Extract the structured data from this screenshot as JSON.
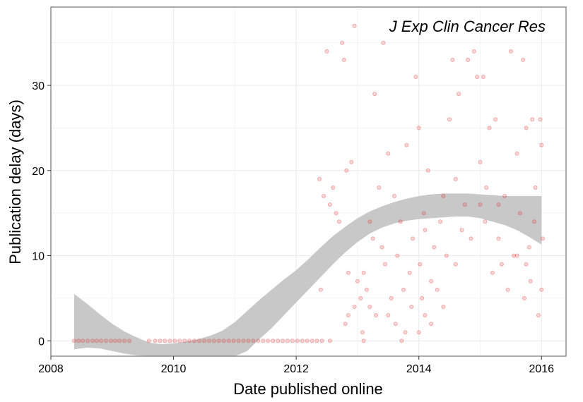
{
  "chart_data": {
    "type": "scatter",
    "annotation": "J Exp Clin Cancer Res",
    "xlabel": "Date published online",
    "ylabel": "Publication delay (days)",
    "xlim": [
      2008.0,
      2016.4
    ],
    "ylim": [
      -1.8,
      39.2
    ],
    "x_ticks": [
      2008,
      2010,
      2012,
      2014,
      2016
    ],
    "y_ticks": [
      0,
      10,
      20,
      30
    ],
    "x_tick_labels": [
      "2008",
      "2010",
      "2012",
      "2014",
      "2016"
    ],
    "y_tick_labels": [
      "0",
      "10",
      "20",
      "30"
    ],
    "grid": true,
    "legend": "none",
    "colors": {
      "points": "#e41a1c",
      "ribbon": "#c8c8c8",
      "panel_border": "#7f7f7f",
      "grid": "#ebebeb"
    },
    "zero_points_x": [
      2008.38,
      2008.45,
      2008.52,
      2008.6,
      2008.68,
      2008.75,
      2008.82,
      2008.9,
      2008.98,
      2009.05,
      2009.12,
      2009.2,
      2009.28,
      2009.6,
      2009.7,
      2009.78,
      2009.86,
      2009.94,
      2010.02,
      2010.1,
      2010.18,
      2010.26,
      2010.34,
      2010.42,
      2010.5,
      2010.58,
      2010.66,
      2010.74,
      2010.82,
      2010.9,
      2010.98,
      2011.06,
      2011.14,
      2011.22,
      2011.3,
      2011.38,
      2011.46,
      2011.54,
      2011.62,
      2011.7,
      2011.78,
      2011.86,
      2011.94,
      2012.02,
      2012.1,
      2012.18,
      2012.26,
      2012.34,
      2012.42,
      2012.55
    ],
    "points": [
      [
        2012.38,
        19
      ],
      [
        2012.45,
        17
      ],
      [
        2012.5,
        34
      ],
      [
        2012.55,
        16
      ],
      [
        2012.6,
        18
      ],
      [
        2012.65,
        15
      ],
      [
        2012.7,
        14
      ],
      [
        2012.75,
        35
      ],
      [
        2012.78,
        33
      ],
      [
        2012.82,
        20
      ],
      [
        2012.85,
        8
      ],
      [
        2012.9,
        21
      ],
      [
        2012.95,
        37
      ],
      [
        2012.4,
        6
      ],
      [
        2012.8,
        2
      ],
      [
        2012.85,
        3
      ],
      [
        2012.95,
        4
      ],
      [
        2013.0,
        7
      ],
      [
        2013.05,
        5
      ],
      [
        2013.08,
        1
      ],
      [
        2013.1,
        8
      ],
      [
        2013.15,
        6
      ],
      [
        2013.2,
        4
      ],
      [
        2013.25,
        12
      ],
      [
        2013.28,
        29
      ],
      [
        2013.3,
        3
      ],
      [
        2013.35,
        18
      ],
      [
        2013.4,
        11
      ],
      [
        2013.42,
        35
      ],
      [
        2013.45,
        9
      ],
      [
        2013.5,
        22
      ],
      [
        2013.55,
        5
      ],
      [
        2013.6,
        17
      ],
      [
        2013.62,
        2
      ],
      [
        2013.65,
        10
      ],
      [
        2013.7,
        14
      ],
      [
        2013.72,
        0
      ],
      [
        2013.75,
        6
      ],
      [
        2013.78,
        1
      ],
      [
        2013.8,
        23
      ],
      [
        2013.85,
        8
      ],
      [
        2013.88,
        4
      ],
      [
        2013.9,
        12
      ],
      [
        2013.95,
        31
      ],
      [
        2014.0,
        25
      ],
      [
        2014.02,
        9
      ],
      [
        2014.05,
        5
      ],
      [
        2014.08,
        15
      ],
      [
        2014.1,
        3
      ],
      [
        2014.15,
        20
      ],
      [
        2014.2,
        7
      ],
      [
        2014.25,
        11
      ],
      [
        2014.3,
        6
      ],
      [
        2014.35,
        14
      ],
      [
        2014.4,
        17
      ],
      [
        2014.45,
        10
      ],
      [
        2014.5,
        26
      ],
      [
        2014.55,
        33
      ],
      [
        2014.6,
        9
      ],
      [
        2014.65,
        29
      ],
      [
        2014.7,
        13
      ],
      [
        2014.75,
        16
      ],
      [
        2014.8,
        33
      ],
      [
        2014.85,
        12
      ],
      [
        2014.9,
        34
      ],
      [
        2014.95,
        31
      ],
      [
        2015.0,
        16
      ],
      [
        2015.05,
        31
      ],
      [
        2015.08,
        14
      ],
      [
        2015.1,
        18
      ],
      [
        2015.15,
        25
      ],
      [
        2015.2,
        8
      ],
      [
        2015.25,
        26
      ],
      [
        2015.3,
        12
      ],
      [
        2015.35,
        9
      ],
      [
        2015.4,
        17
      ],
      [
        2015.45,
        6
      ],
      [
        2015.5,
        34
      ],
      [
        2015.55,
        10
      ],
      [
        2015.6,
        22
      ],
      [
        2015.65,
        15
      ],
      [
        2015.7,
        33
      ],
      [
        2015.72,
        5
      ],
      [
        2015.75,
        25
      ],
      [
        2015.8,
        11
      ],
      [
        2015.82,
        7
      ],
      [
        2015.85,
        26
      ],
      [
        2015.88,
        14
      ],
      [
        2015.9,
        18
      ],
      [
        2015.95,
        3
      ],
      [
        2015.98,
        26
      ],
      [
        2016.0,
        23
      ],
      [
        2016.02,
        12
      ],
      [
        2016.0,
        6
      ],
      [
        2014.1,
        13
      ],
      [
        2014.2,
        2
      ],
      [
        2014.6,
        19
      ],
      [
        2015.0,
        21
      ],
      [
        2015.3,
        16
      ],
      [
        2013.2,
        14
      ],
      [
        2013.5,
        3
      ],
      [
        2014.4,
        4
      ],
      [
        2015.6,
        10
      ],
      [
        2015.75,
        9
      ],
      [
        2013.1,
        0
      ],
      [
        2014.0,
        1
      ]
    ],
    "ribbon": {
      "x": [
        2008.38,
        2008.6,
        2008.8,
        2009.0,
        2009.2,
        2009.4,
        2009.6,
        2009.8,
        2010.0,
        2010.2,
        2010.4,
        2010.6,
        2010.8,
        2011.0,
        2011.2,
        2011.4,
        2011.6,
        2011.8,
        2012.0,
        2012.2,
        2012.4,
        2012.6,
        2012.8,
        2013.0,
        2013.2,
        2013.4,
        2013.6,
        2013.8,
        2014.0,
        2014.2,
        2014.4,
        2014.6,
        2014.8,
        2015.0,
        2015.2,
        2015.4,
        2015.6,
        2015.8,
        2016.0
      ],
      "lower": [
        -1.0,
        -0.8,
        -0.9,
        -1.2,
        -1.5,
        -1.7,
        -1.8,
        -1.8,
        -1.8,
        -1.8,
        -1.8,
        -1.8,
        -1.8,
        -1.8,
        -1.2,
        0.2,
        1.5,
        3.0,
        4.5,
        6.0,
        7.5,
        9.0,
        10.4,
        11.6,
        12.6,
        13.3,
        13.8,
        14.1,
        14.3,
        14.4,
        14.5,
        14.6,
        14.6,
        14.4,
        14.0,
        13.6,
        13.0,
        12.2,
        11.3
      ],
      "upper": [
        5.5,
        4.3,
        3.1,
        2.0,
        1.1,
        0.4,
        -0.2,
        -0.4,
        -0.3,
        -0.1,
        0.2,
        0.6,
        1.2,
        2.2,
        3.5,
        4.8,
        6.0,
        7.2,
        8.3,
        9.6,
        11.0,
        12.3,
        13.4,
        14.4,
        15.2,
        15.8,
        16.3,
        16.7,
        17.0,
        17.2,
        17.3,
        17.3,
        17.3,
        17.2,
        17.1,
        17.0,
        17.0,
        17.0,
        17.0
      ]
    }
  }
}
